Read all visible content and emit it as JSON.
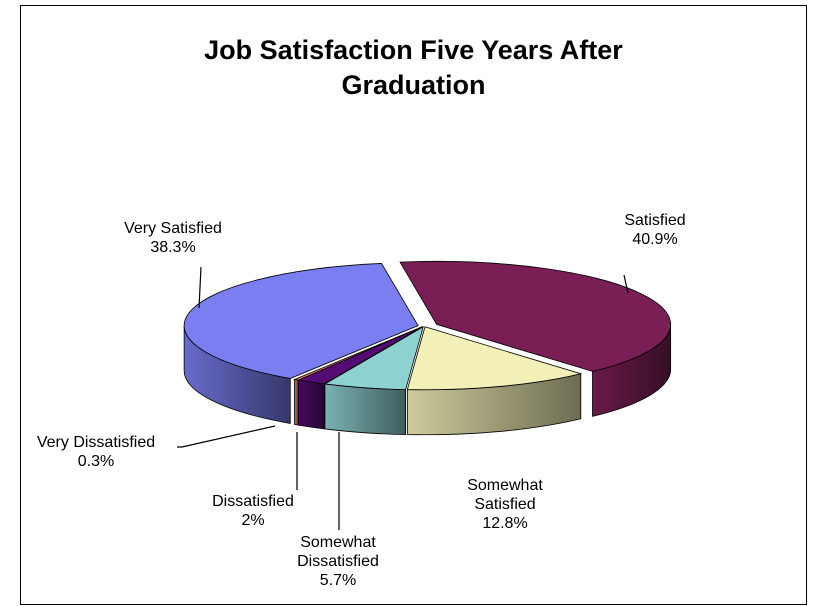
{
  "chart_data": {
    "type": "pie",
    "style": "3d-exploded-tilted",
    "title": "Job Satisfaction Five Years After Graduation",
    "title_lines": [
      "Job Satisfaction Five Years After",
      "Graduation"
    ],
    "slices": [
      {
        "name": "Satisfied",
        "value": 40.9,
        "value_label": "40.9%",
        "color": "#7a1f55"
      },
      {
        "name": "Somewhat Satisfied",
        "value": 12.8,
        "value_label": "12.8%",
        "color": "#f2f0b6"
      },
      {
        "name": "Somewhat Dissatisfied",
        "value": 5.7,
        "value_label": "5.7%",
        "color": "#8ed1d1"
      },
      {
        "name": "Dissatisfied",
        "value": 2,
        "value_label": "2%",
        "color": "#560a73"
      },
      {
        "name": "Very Dissatisfied",
        "value": 0.3,
        "value_label": "0.3%",
        "color": "#f07c73"
      },
      {
        "name": "Very Satisfied",
        "value": 38.3,
        "value_label": "38.3%",
        "color": "#7b7ef0"
      }
    ],
    "labels": [
      {
        "lines": [
          "Satisfied",
          "40.9%"
        ]
      },
      {
        "lines": [
          "Somewhat",
          "Satisfied",
          "12.8%"
        ]
      },
      {
        "lines": [
          "Somewhat",
          "Dissatisfied",
          "5.7%"
        ]
      },
      {
        "lines": [
          "Dissatisfied",
          "2%"
        ]
      },
      {
        "lines": [
          "Very Dissatisfied",
          "0.3%"
        ]
      },
      {
        "lines": [
          "Very Satisfied",
          "38.3%"
        ]
      }
    ],
    "legend": "none"
  }
}
